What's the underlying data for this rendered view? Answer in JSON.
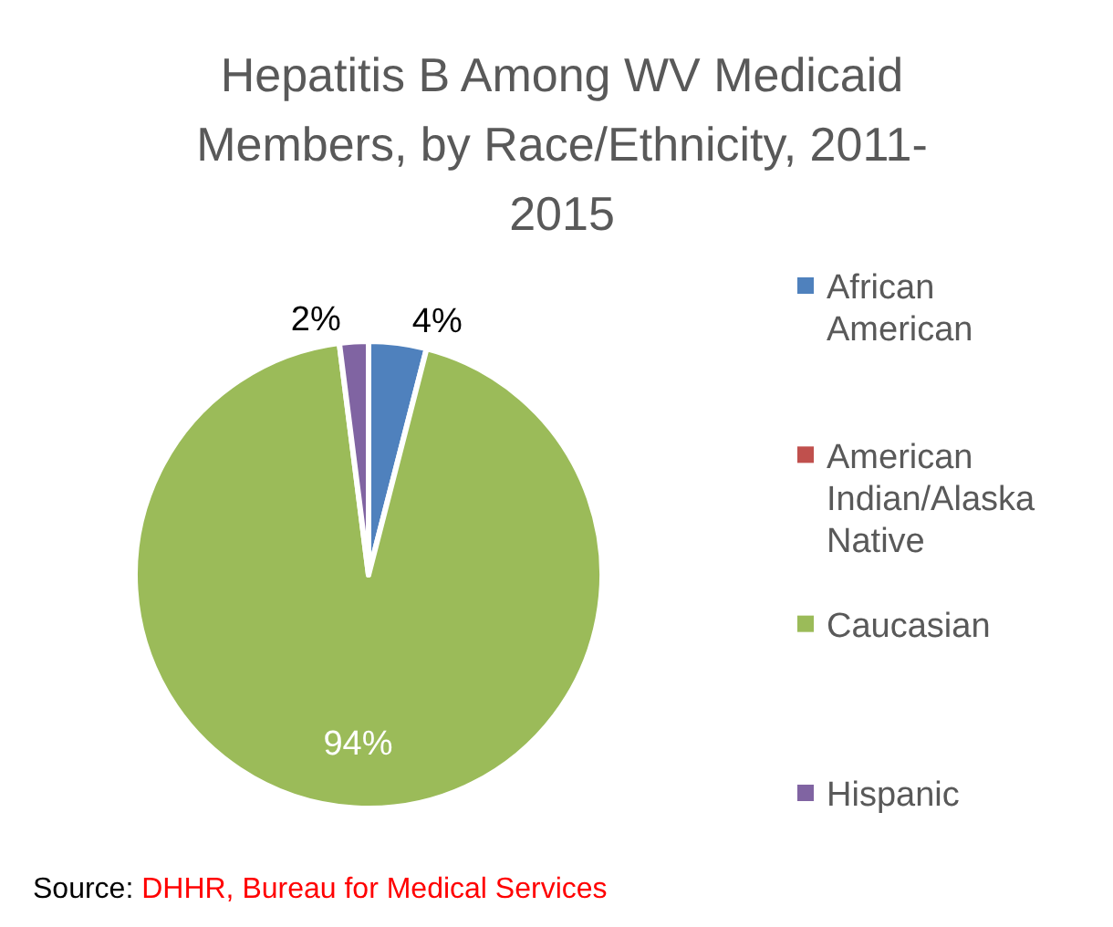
{
  "chart_data": {
    "type": "pie",
    "title": "Hepatitis B Among WV Medicaid Members, by Race/Ethnicity, 2011-2015",
    "categories": [
      "African American",
      "American Indian/Alaska Native",
      "Caucasian",
      "Hispanic"
    ],
    "values": [
      4,
      0,
      94,
      2
    ],
    "colors": [
      "#4f81bd",
      "#c0504d",
      "#9bbb59",
      "#8064a2"
    ],
    "value_labels": [
      "4%",
      null,
      "94%",
      "2%"
    ],
    "legend": "right",
    "annotations": [
      "Source: DHHR, Bureau for Medical Services"
    ]
  }
}
